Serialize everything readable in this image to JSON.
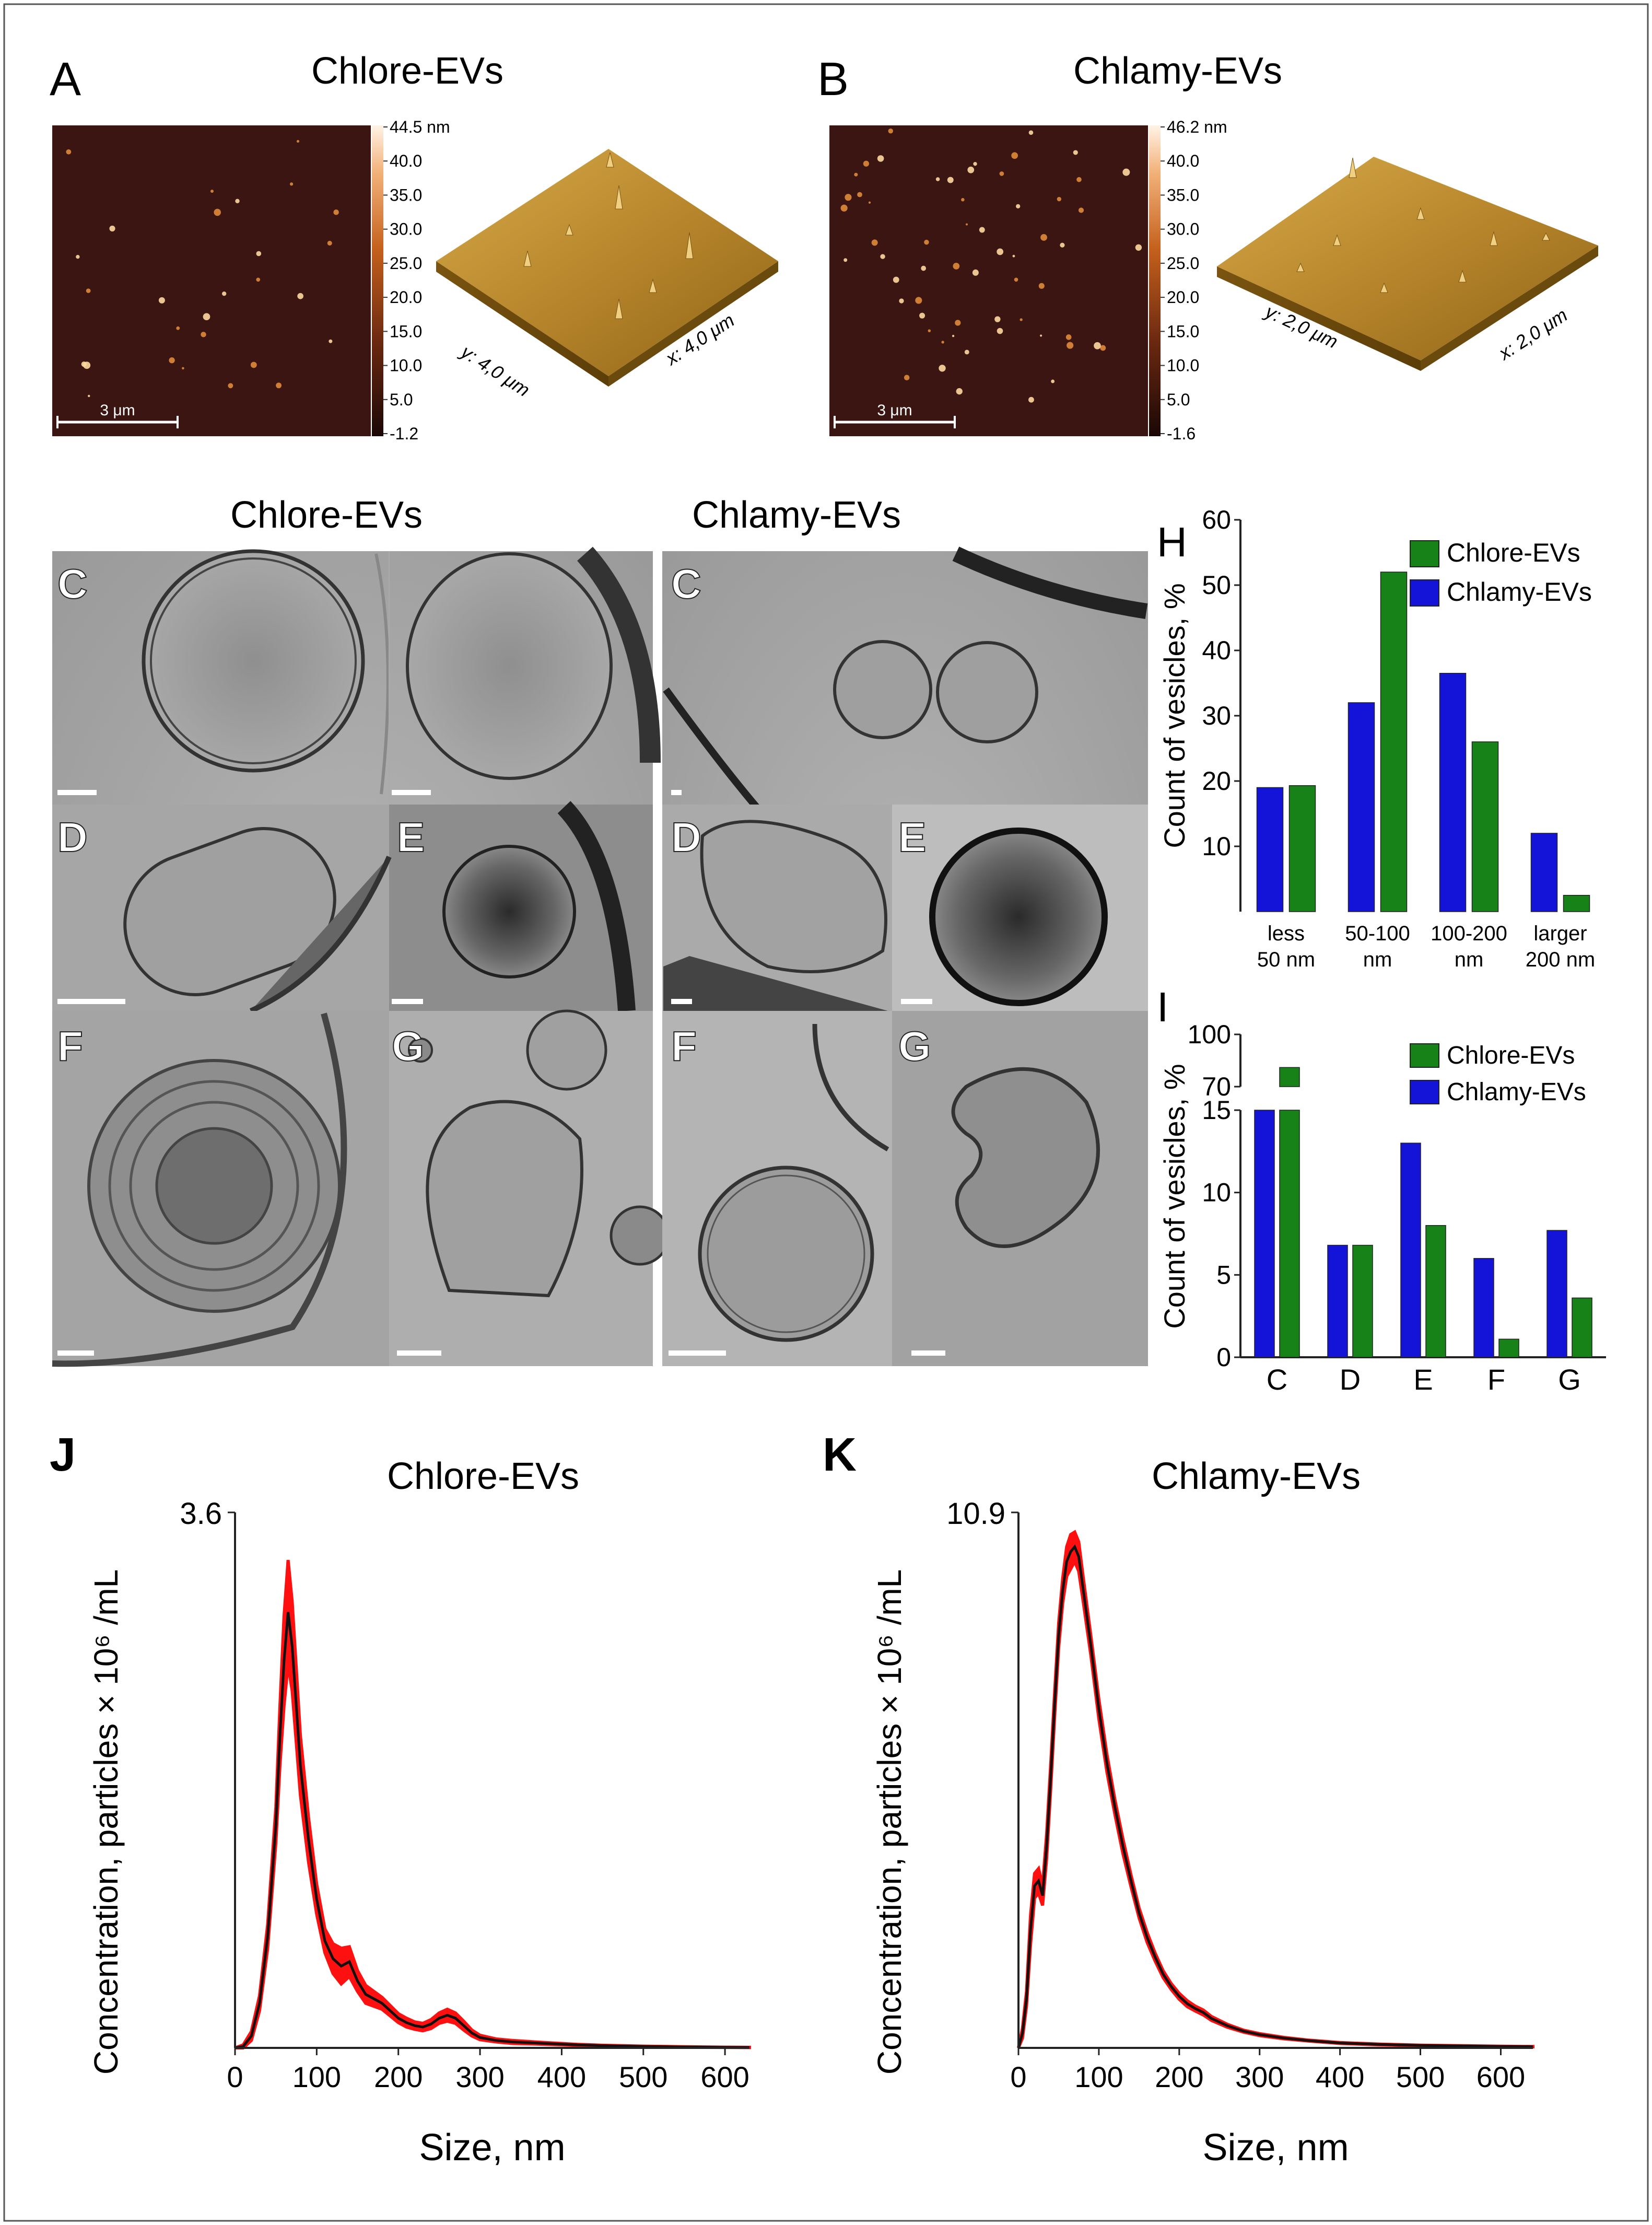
{
  "panels": {
    "A": {
      "letter": "A",
      "title": "Chlore-EVs",
      "scale_bar": "3 μm",
      "colorbar_ticks": [
        "44.5 nm",
        "40.0",
        "35.0",
        "30.0",
        "25.0",
        "20.0",
        "15.0",
        "10.0",
        "5.0",
        "-1.2"
      ],
      "axis_y": "y: 4,0 μm",
      "axis_x": "x: 4,0 μm"
    },
    "B": {
      "letter": "B",
      "title": "Chlamy-EVs",
      "scale_bar": "3 μm",
      "colorbar_ticks": [
        "46.2 nm",
        "40.0",
        "35.0",
        "30.0",
        "25.0",
        "20.0",
        "15.0",
        "10.0",
        "5.0",
        "-1.6"
      ],
      "axis_y": "y: 2,0 μm",
      "axis_x": "x: 2,0 μm"
    },
    "cryo": {
      "left_title": "Chlore-EVs",
      "right_title": "Chlamy-EVs",
      "left_labels": [
        "C",
        "D",
        "E",
        "F",
        "G"
      ],
      "right_labels": [
        "C",
        "D",
        "E",
        "F",
        "G"
      ]
    },
    "J": {
      "letter": "J",
      "title": "Chlore-EVs"
    },
    "K": {
      "letter": "K",
      "title": "Chlamy-EVs"
    }
  },
  "colors": {
    "chlore": "#178217",
    "chlamy": "#1414d9",
    "mean_line": "#111111",
    "error_band": "#ff1010",
    "afm_dark": "#3a1512",
    "afm_3d": "#b9862a"
  },
  "chart_data": [
    {
      "id": "H",
      "letter": "H",
      "type": "bar",
      "categories": [
        "less\n50 nm",
        "50-100\nnm",
        "100-200\nnm",
        "larger\n200 nm"
      ],
      "series": [
        {
          "name": "Chlamy-EVs",
          "color": "#1414d9",
          "values": [
            19,
            32,
            36.5,
            12
          ]
        },
        {
          "name": "Chlore-EVs",
          "color": "#178217",
          "values": [
            19.3,
            52,
            26,
            2.5
          ]
        }
      ],
      "legend_order": [
        "Chlore-EVs",
        "Chlamy-EVs"
      ],
      "ylabel": "Count of vesicles, %",
      "ylim": [
        0,
        60
      ],
      "yticks": [
        "10",
        "20",
        "30",
        "40",
        "50",
        "60"
      ],
      "legend": "top-right",
      "grid": false
    },
    {
      "id": "I",
      "letter": "I",
      "type": "bar",
      "categories": [
        "C",
        "D",
        "E",
        "F",
        "G"
      ],
      "series": [
        {
          "name": "Chlamy-EVs",
          "color": "#1414d9",
          "values": [
            66,
            6.8,
            13,
            6,
            7.7
          ]
        },
        {
          "name": "Chlore-EVs",
          "color": "#178217",
          "values": [
            81,
            6.8,
            8,
            1.1,
            3.6
          ]
        }
      ],
      "legend_order": [
        "Chlore-EVs",
        "Chlamy-EVs"
      ],
      "ylabel": "Count of vesicles, %",
      "ylim_lower": [
        0,
        15
      ],
      "ylim_upper": [
        70,
        100
      ],
      "yticks_lower": [
        "0",
        "5",
        "10",
        "15"
      ],
      "yticks_upper": [
        "70",
        "100"
      ],
      "axis_break": true,
      "legend": "top-right",
      "grid": false
    },
    {
      "id": "J",
      "type": "line",
      "xlabel": "Size, nm",
      "ylabel": "Concentration, particles × 10⁶ /mL",
      "ymax_label": "3.6",
      "xlim": [
        0,
        630
      ],
      "ylim": [
        0,
        3.6
      ],
      "xticks": [
        "0",
        "100",
        "200",
        "300",
        "400",
        "500",
        "600"
      ],
      "x": [
        0,
        10,
        20,
        30,
        40,
        50,
        55,
        60,
        65,
        70,
        75,
        80,
        90,
        100,
        110,
        120,
        130,
        140,
        150,
        160,
        170,
        180,
        190,
        200,
        210,
        220,
        230,
        240,
        250,
        260,
        270,
        280,
        290,
        300,
        320,
        340,
        360,
        380,
        400,
        420,
        450,
        500,
        550,
        600,
        630
      ],
      "y": [
        0,
        0.01,
        0.08,
        0.3,
        0.75,
        1.5,
        2.1,
        2.6,
        2.93,
        2.7,
        2.3,
        1.9,
        1.4,
        1.0,
        0.72,
        0.6,
        0.55,
        0.58,
        0.45,
        0.36,
        0.33,
        0.3,
        0.25,
        0.2,
        0.17,
        0.15,
        0.14,
        0.16,
        0.2,
        0.22,
        0.2,
        0.15,
        0.1,
        0.07,
        0.05,
        0.04,
        0.035,
        0.03,
        0.025,
        0.02,
        0.015,
        0.01,
        0.006,
        0.004,
        0.003
      ],
      "error": [
        0,
        0.01,
        0.03,
        0.05,
        0.08,
        0.12,
        0.2,
        0.3,
        0.35,
        0.3,
        0.25,
        0.2,
        0.15,
        0.1,
        0.08,
        0.1,
        0.12,
        0.1,
        0.07,
        0.06,
        0.05,
        0.04,
        0.035,
        0.03,
        0.03,
        0.025,
        0.025,
        0.03,
        0.035,
        0.04,
        0.035,
        0.03,
        0.02,
        0.015,
        0.01,
        0.01,
        0.008,
        0.006,
        0.005,
        0.004,
        0.003,
        0.002,
        0.002,
        0.001,
        0.001
      ]
    },
    {
      "id": "K",
      "type": "line",
      "xlabel": "Size, nm",
      "ylabel": "Concentration, particles × 10⁶ /mL",
      "ymax_label": "10.9",
      "xlim": [
        0,
        640
      ],
      "ylim": [
        0,
        10.9
      ],
      "xticks": [
        "0",
        "100",
        "200",
        "300",
        "400",
        "500",
        "600"
      ],
      "x": [
        0,
        5,
        10,
        15,
        20,
        25,
        30,
        35,
        40,
        45,
        50,
        55,
        60,
        65,
        70,
        75,
        80,
        90,
        100,
        110,
        120,
        130,
        140,
        150,
        160,
        170,
        180,
        190,
        200,
        210,
        220,
        230,
        240,
        260,
        280,
        300,
        330,
        360,
        400,
        450,
        500,
        550,
        600,
        640
      ],
      "y": [
        0,
        0.3,
        1.0,
        2.4,
        3.3,
        3.4,
        3.1,
        4.1,
        5.5,
        7.0,
        8.4,
        9.3,
        9.9,
        10.1,
        10.2,
        10.0,
        9.4,
        8.2,
        6.9,
        5.8,
        4.9,
        4.1,
        3.4,
        2.75,
        2.25,
        1.85,
        1.5,
        1.25,
        1.05,
        0.9,
        0.8,
        0.72,
        0.6,
        0.45,
        0.34,
        0.27,
        0.2,
        0.15,
        0.1,
        0.07,
        0.05,
        0.04,
        0.03,
        0.025
      ],
      "error": [
        0,
        0.1,
        0.15,
        0.3,
        0.25,
        0.25,
        0.2,
        0.25,
        0.25,
        0.25,
        0.25,
        0.25,
        0.3,
        0.35,
        0.3,
        0.3,
        0.25,
        0.2,
        0.2,
        0.18,
        0.15,
        0.15,
        0.12,
        0.1,
        0.1,
        0.08,
        0.07,
        0.06,
        0.06,
        0.06,
        0.05,
        0.05,
        0.04,
        0.03,
        0.02,
        0.02,
        0.015,
        0.01,
        0.01,
        0.008,
        0.006,
        0.005,
        0.004,
        0.004
      ]
    }
  ]
}
